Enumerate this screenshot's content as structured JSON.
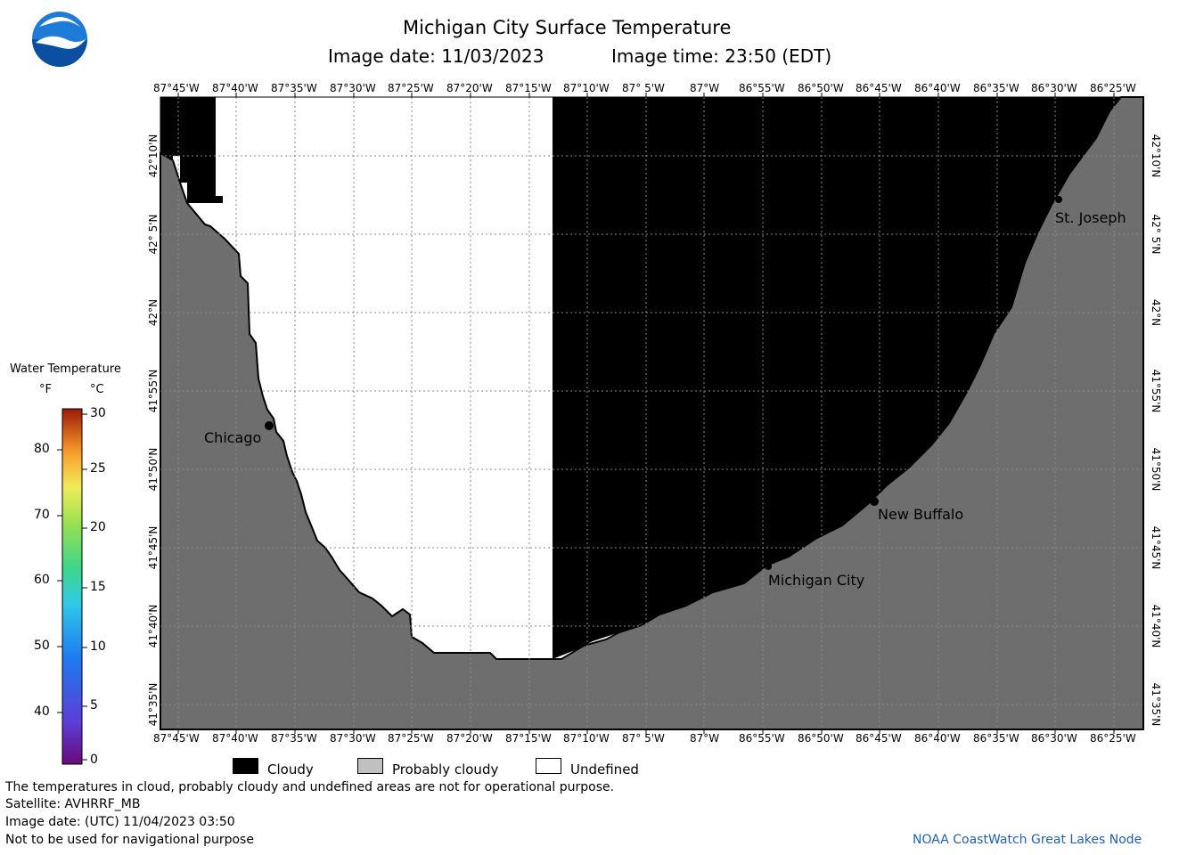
{
  "header": {
    "title": "Michigan City Surface Temperature",
    "image_date": "Image date: 11/03/2023",
    "image_time": "Image time: 23:50 (EDT)"
  },
  "logo": {
    "name": "noaa-logo-icon",
    "text": "NOAA"
  },
  "map": {
    "lon_labels": [
      "87°45'W",
      "87°40'W",
      "87°35'W",
      "87°30'W",
      "87°25'W",
      "87°20'W",
      "87°15'W",
      "87°10'W",
      "87° 5'W",
      "87°W",
      "86°55'W",
      "86°50'W",
      "86°45'W",
      "86°40'W",
      "86°35'W",
      "86°30'W",
      "86°25'W"
    ],
    "lat_labels": [
      "42°10'N",
      "42° 5'N",
      "42°N",
      "41°55'N",
      "41°50'N",
      "41°45'N",
      "41°40'N",
      "41°35'N"
    ],
    "places": [
      {
        "name": "Chicago"
      },
      {
        "name": "St. Joseph"
      },
      {
        "name": "New Buffalo"
      },
      {
        "name": "Michigan City"
      }
    ],
    "colors": {
      "land": "#6e6e6e",
      "cloudy": "#000000",
      "undefined": "#ffffff",
      "grid": "#888888"
    }
  },
  "colorbar": {
    "title": "Water Temperature",
    "unit_f": "°F",
    "unit_c": "°C",
    "f_ticks": [
      "80",
      "70",
      "60",
      "50",
      "40"
    ],
    "c_ticks": [
      "30",
      "25",
      "20",
      "15",
      "10",
      "5",
      "0"
    ]
  },
  "legend": {
    "cloudy": "Cloudy",
    "probably_cloudy": "Probably cloudy",
    "undefined": "Undefined",
    "colors": {
      "cloudy": "#000000",
      "probably_cloudy": "#c0c0c0",
      "undefined": "#ffffff"
    }
  },
  "footer": {
    "line1": "The temperatures in cloud, probably cloudy and undefined areas are not for operational purpose.",
    "line2": "Satellite: AVHRRF_MB",
    "line3": "Image date: (UTC) 11/04/2023  03:50",
    "line4": "Not to be used for navigational purpose",
    "credit": "NOAA CoastWatch Great Lakes Node",
    "credit_color": "#1f5fbf"
  }
}
